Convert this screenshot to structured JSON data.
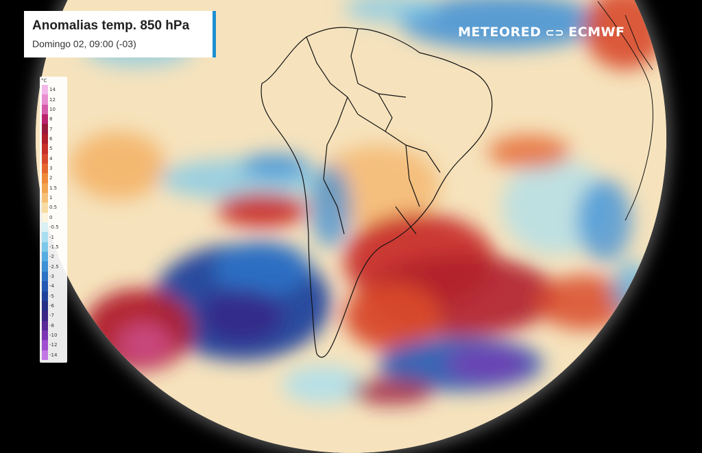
{
  "title": {
    "main": "Anomalias temp. 850 hPa",
    "subtitle": "Domingo 02, 09:00 (-03)"
  },
  "logo": {
    "brand": "METEORED",
    "partner": "ECMWF",
    "separator_icon": "ecmwf-logo-icon"
  },
  "legend": {
    "unit": "°C",
    "levels": [
      {
        "label": "14",
        "color": "#f2b8e8"
      },
      {
        "label": "12",
        "color": "#e88fd0"
      },
      {
        "label": "10",
        "color": "#d65cab"
      },
      {
        "label": "8",
        "color": "#b8246e"
      },
      {
        "label": "7",
        "color": "#9a1b3c"
      },
      {
        "label": "6",
        "color": "#b01f2b"
      },
      {
        "label": "5",
        "color": "#c8302a"
      },
      {
        "label": "4",
        "color": "#d84a2c"
      },
      {
        "label": "3",
        "color": "#e5672f"
      },
      {
        "label": "2",
        "color": "#ee8a3a"
      },
      {
        "label": "1.5",
        "color": "#f3a652"
      },
      {
        "label": "1",
        "color": "#f6c177"
      },
      {
        "label": "0.5",
        "color": "#f8dca3"
      },
      {
        "label": "0",
        "color": "#fdf4de"
      },
      {
        "label": "-0.5",
        "color": "#d9f0f4"
      },
      {
        "label": "-1",
        "color": "#a8def0"
      },
      {
        "label": "-1.5",
        "color": "#7cc8ea"
      },
      {
        "label": "-2",
        "color": "#56ade2"
      },
      {
        "label": "-2.5",
        "color": "#3d8fd6"
      },
      {
        "label": "-3",
        "color": "#2c72c6"
      },
      {
        "label": "-4",
        "color": "#2358b3"
      },
      {
        "label": "-5",
        "color": "#1f419c"
      },
      {
        "label": "-6",
        "color": "#262e86"
      },
      {
        "label": "-7",
        "color": "#3a2786"
      },
      {
        "label": "-8",
        "color": "#5a2a98"
      },
      {
        "label": "-10",
        "color": "#7c36b4"
      },
      {
        "label": "-12",
        "color": "#a04fd0"
      },
      {
        "label": "-14",
        "color": "#c277e6"
      }
    ]
  }
}
